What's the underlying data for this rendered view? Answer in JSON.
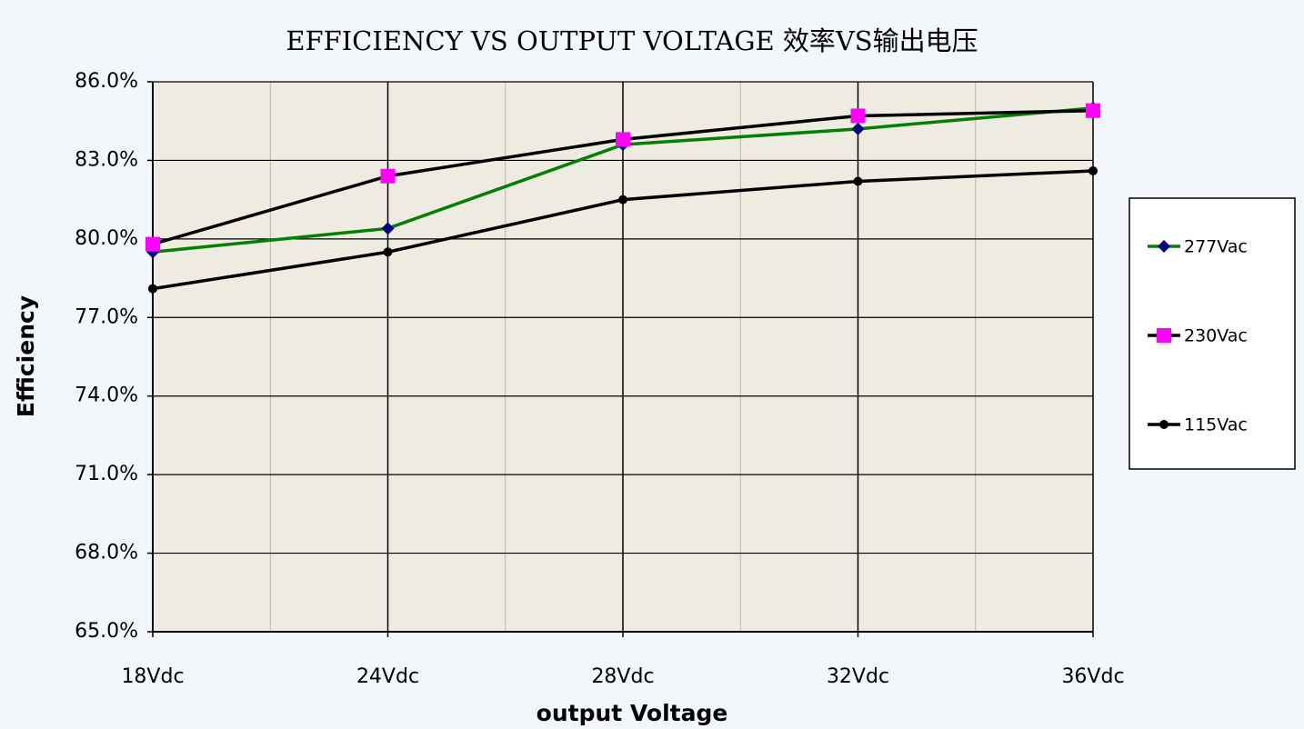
{
  "chart_data": {
    "type": "line",
    "title": "EFFICIENCY VS OUTPUT VOLTAGE 效率VS输出电压",
    "x_label": "output Voltage",
    "y_label": "Efficiency",
    "categories": [
      "18Vdc",
      "24Vdc",
      "28Vdc",
      "32Vdc",
      "36Vdc"
    ],
    "series": [
      {
        "name": "277Vac",
        "color": "#008000",
        "marker_color": "#000080",
        "marker": "diamond",
        "values": [
          79.5,
          80.4,
          83.6,
          84.2,
          85.0
        ]
      },
      {
        "name": "230Vac",
        "color": "#000000",
        "marker_color": "#ff00ff",
        "marker": "square",
        "values": [
          79.8,
          82.4,
          83.8,
          84.7,
          84.9
        ]
      },
      {
        "name": "115Vac",
        "color": "#000000",
        "marker_color": "#000000",
        "marker": "circle",
        "values": [
          78.1,
          79.5,
          81.5,
          82.2,
          82.6
        ]
      }
    ],
    "ylim": [
      65,
      86
    ],
    "yticks": [
      {
        "value": 65,
        "label": "65.0%"
      },
      {
        "value": 68,
        "label": "68.0%"
      },
      {
        "value": 71,
        "label": "71.0%"
      },
      {
        "value": 74,
        "label": "74.0%"
      },
      {
        "value": 77,
        "label": "77.0%"
      },
      {
        "value": 80,
        "label": "80.0%"
      },
      {
        "value": 83,
        "label": "83.0%"
      },
      {
        "value": 86,
        "label": "86.0%"
      }
    ],
    "grid": true,
    "legend_position": "right"
  }
}
